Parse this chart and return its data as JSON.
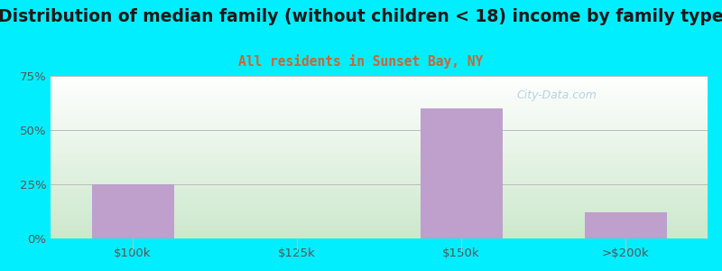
{
  "categories": [
    "$100k",
    "$125k",
    "$150k",
    ">$200k"
  ],
  "values": [
    25.0,
    0.0,
    60.0,
    12.0
  ],
  "bar_color": "#bf9fcc",
  "title": "Distribution of median family (without children < 18) income by family type",
  "subtitle": "All residents in Sunset Bay, NY",
  "title_fontsize": 13.5,
  "subtitle_fontsize": 10.5,
  "title_color": "#1a1a1a",
  "subtitle_color": "#cc6633",
  "ylim": [
    0,
    75
  ],
  "yticks": [
    0,
    25,
    50,
    75
  ],
  "yticklabels": [
    "0%",
    "25%",
    "50%",
    "75%"
  ],
  "background_color": "#00eeff",
  "plot_bg_top_color": "#ffffff",
  "plot_bg_bottom_color": "#cce8cc",
  "grid_color": "#bbbbbb",
  "watermark": "City-Data.com",
  "bar_width": 0.5,
  "tick_label_color": "#555555"
}
